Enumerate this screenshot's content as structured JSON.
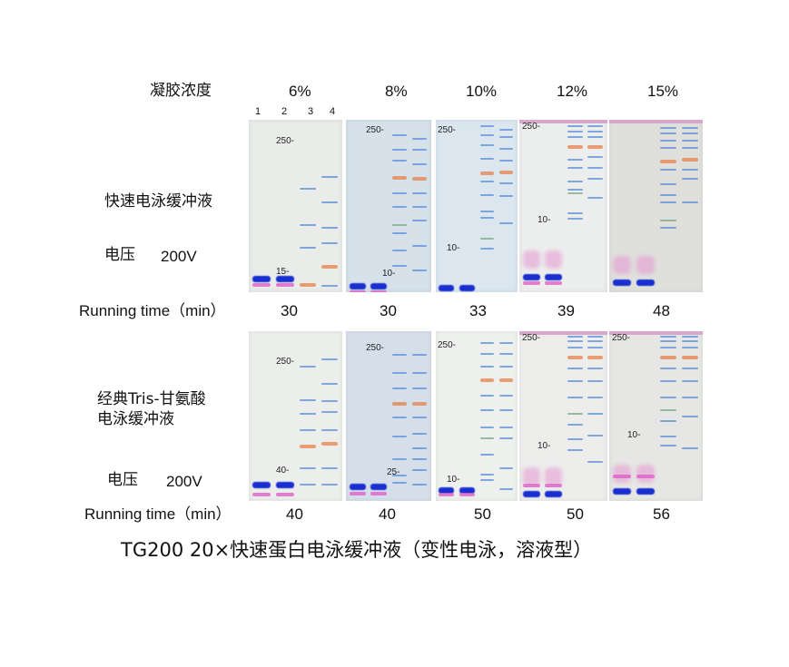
{
  "header": {
    "gel_concentration_label": "凝胶浓度",
    "concentrations": [
      "6%",
      "8%",
      "10%",
      "12%",
      "15%"
    ],
    "lane_numbers": [
      "1",
      "2",
      "3",
      "4"
    ]
  },
  "top_row": {
    "buffer_label": "快速电泳缓冲液",
    "voltage_label": "电压",
    "voltage_value": "200V",
    "running_time_label": "Running time（min）",
    "times": [
      "30",
      "30",
      "33",
      "39",
      "48"
    ],
    "markers": [
      {
        "high": "250-",
        "low": "15-"
      },
      {
        "high": "250-",
        "low": "10-"
      },
      {
        "high": "250-",
        "low": "10-"
      },
      {
        "high": "250-",
        "low": "10-"
      },
      {
        "high": "",
        "low": ""
      }
    ]
  },
  "bottom_row": {
    "buffer_label_line1": "经典Tris-甘氨酸",
    "buffer_label_line2": "电泳缓冲液",
    "voltage_label": "电压",
    "voltage_value": "200V",
    "running_time_label": "Running time（min）",
    "times": [
      "40",
      "40",
      "50",
      "50",
      "56"
    ],
    "markers": [
      {
        "high": "250-",
        "low": "40-"
      },
      {
        "high": "250-",
        "low": "25-"
      },
      {
        "high": "250-",
        "low": "10-"
      },
      {
        "high": "250-",
        "low": "10-"
      },
      {
        "high": "250-",
        "low": "10-"
      }
    ]
  },
  "caption": "TG200  20×快速蛋白电泳缓冲液（变性电泳，溶液型）",
  "colors": {
    "dye_front": "#1a2fd0",
    "pink_band": "#e060c8",
    "ladder_blue": "#5a8fd8",
    "ladder_orange": "#e8804a",
    "ladder_green": "#7aa888"
  }
}
